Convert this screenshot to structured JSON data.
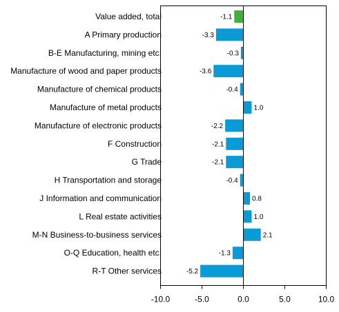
{
  "chart_data": {
    "type": "bar",
    "orientation": "horizontal",
    "categories": [
      "Value added, total",
      "A Primary production",
      "B-E Manufacturing, mining etc.",
      "Manufacture of wood and paper products",
      "Manufacture of chemical products",
      "Manufacture of metal products",
      "Manufacture of electronic products",
      "F Construction",
      "G Trade",
      "H Transportation and storage",
      "J Information and communication",
      "L Real estate activities",
      "M-N Business-to-business services",
      "O-Q Education, health etc.",
      "R-T Other services"
    ],
    "values": [
      -1.1,
      -3.3,
      -0.3,
      -3.6,
      -0.4,
      1.0,
      -2.2,
      -2.1,
      -2.1,
      -0.4,
      0.8,
      1.0,
      2.1,
      -1.3,
      -5.2
    ],
    "value_labels": [
      "-1.1",
      "-3.3",
      "-0.3",
      "-3.6",
      "-0.4",
      "1.0",
      "-2.2",
      "-2.1",
      "-2.1",
      "-0.4",
      "0.8",
      "1.0",
      "2.1",
      "-1.3",
      "-5.2"
    ],
    "xlim": [
      -10,
      10
    ],
    "x_ticks": [
      -10,
      -5,
      0,
      5,
      10
    ],
    "x_tick_labels": [
      "-10.0",
      "-5.0",
      "0.0",
      "5.0",
      "10.0"
    ],
    "colors": {
      "total": "#3cb43c",
      "default": "#0a9bd7",
      "axis": "#000000"
    },
    "highlight_index": 0,
    "grid": false
  }
}
